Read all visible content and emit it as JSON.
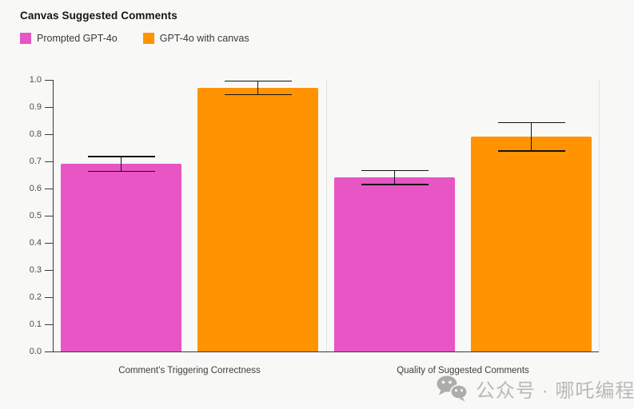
{
  "chart_data": {
    "type": "bar",
    "title": "Canvas Suggested Comments",
    "categories": [
      "Comment’s Triggering Correctness",
      "Quality of Suggested Comments"
    ],
    "series": [
      {
        "name": "Prompted GPT-4o",
        "color": "#E855C5",
        "values": [
          0.69,
          0.64
        ],
        "error_bars": [
          0.027,
          0.026
        ]
      },
      {
        "name": "GPT-4o with canvas",
        "color": "#FF9302",
        "values": [
          0.97,
          0.79
        ],
        "error_bars": [
          0.025,
          0.052
        ]
      }
    ],
    "xlabel": "",
    "ylabel": "",
    "ylim": [
      0.0,
      1.0
    ],
    "yticks": [
      "0.0",
      "0.1",
      "0.2",
      "0.3",
      "0.4",
      "0.5",
      "0.6",
      "0.7",
      "0.8",
      "0.9",
      "1.0"
    ],
    "grid": "category separator lines only",
    "legend_position": "top-left",
    "error_bar_color": "#141414",
    "background_color": "#f8f8f7"
  },
  "watermark": {
    "icon": "wechat-icon",
    "text": "公众号 · 哪吒编程"
  }
}
